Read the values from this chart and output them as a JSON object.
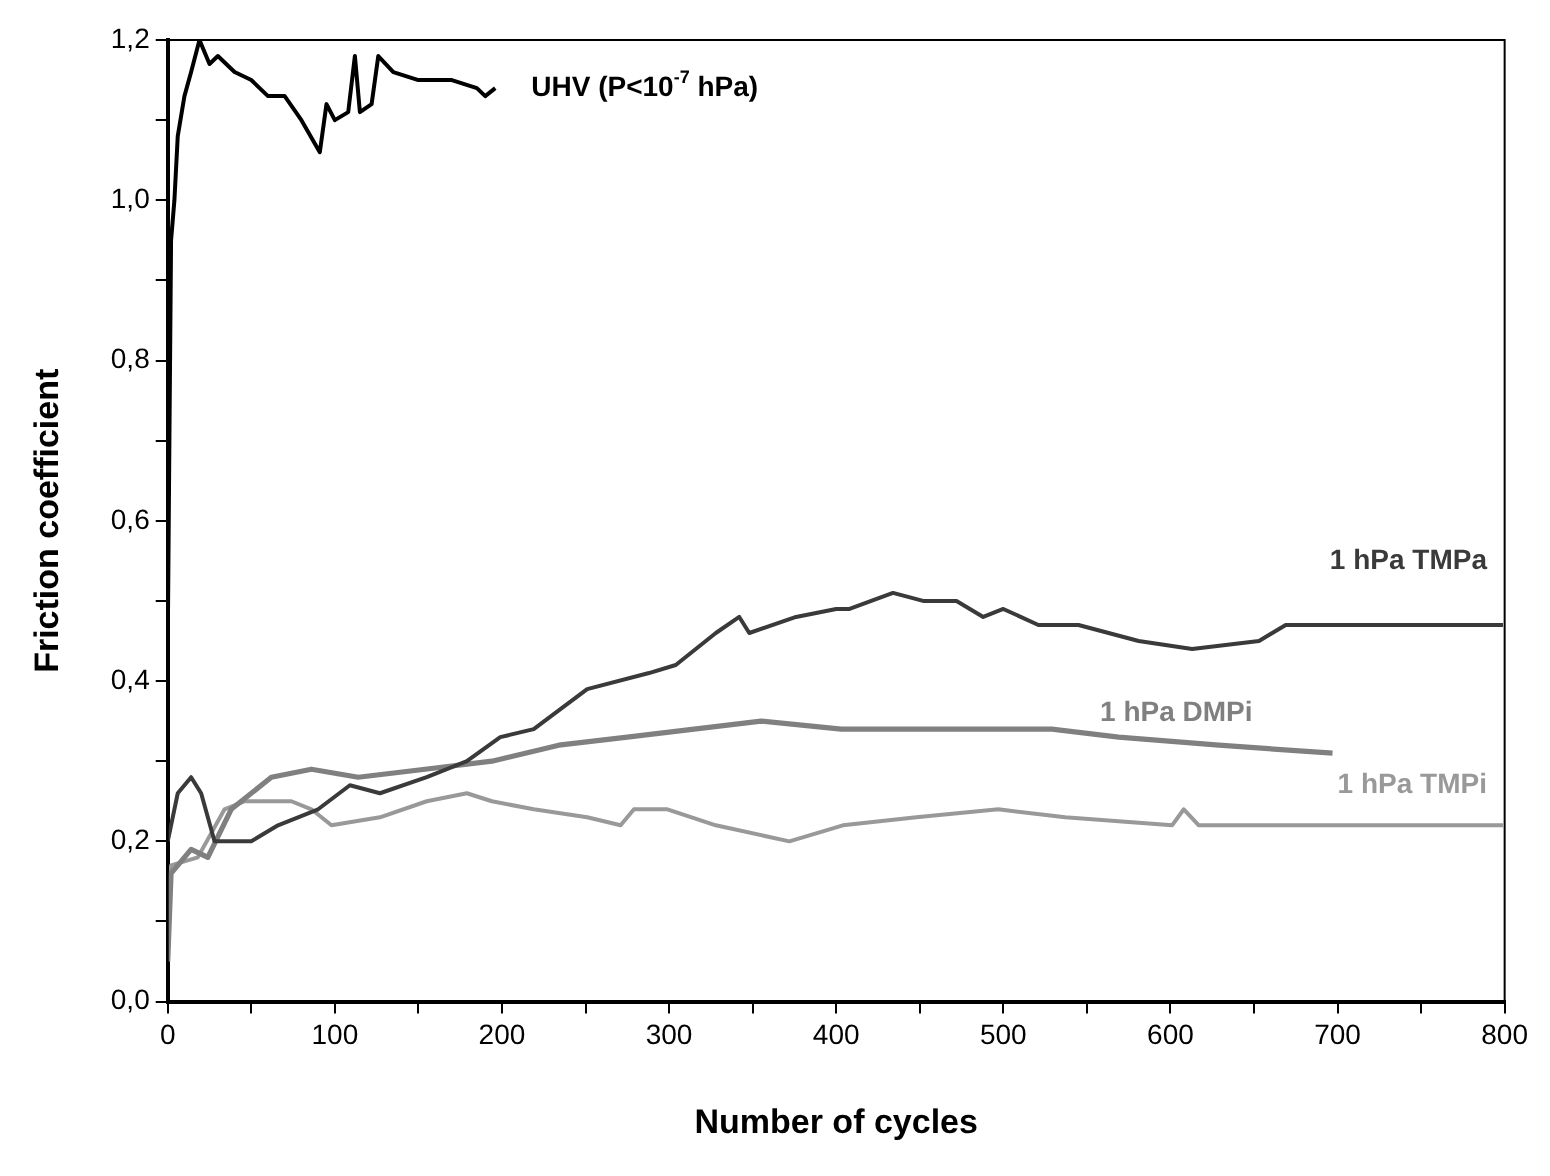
{
  "chart_data": {
    "type": "line",
    "xlabel": "Number of cycles",
    "ylabel": "Friction coefficient",
    "xlim": [
      0,
      800
    ],
    "ylim": [
      0,
      1.2
    ],
    "xticks": [
      0,
      {
        "value": 50,
        "label": null
      },
      100,
      {
        "value": 150,
        "label": null
      },
      200,
      {
        "value": 250,
        "label": null
      },
      300,
      {
        "value": 350,
        "label": null
      },
      400,
      {
        "value": 450,
        "label": null
      },
      500,
      {
        "value": 550,
        "label": null
      },
      600,
      {
        "value": 650,
        "label": null
      },
      700,
      {
        "value": 750,
        "label": null
      },
      800
    ],
    "yticks": [
      {
        "value": 0,
        "label": "0,0"
      },
      {
        "value": 0.1,
        "label": null
      },
      {
        "value": 0.2,
        "label": "0,2"
      },
      {
        "value": 0.3,
        "label": null
      },
      {
        "value": 0.4,
        "label": "0,4"
      },
      {
        "value": 0.5,
        "label": null
      },
      {
        "value": 0.6,
        "label": "0,6"
      },
      {
        "value": 0.7,
        "label": null
      },
      {
        "value": 0.8,
        "label": "0,8"
      },
      {
        "value": 0.9,
        "label": null
      },
      {
        "value": 1.0,
        "label": "1,0"
      },
      {
        "value": 1.1,
        "label": null
      },
      {
        "value": 1.2,
        "label": "1,2"
      }
    ],
    "grid": false,
    "legend": false,
    "marker": "none",
    "line_style": "solid",
    "series": [
      {
        "name": "UHV (P<10$^{-7}$ hPa)",
        "color": "#000000",
        "x": [
          0,
          1,
          2,
          4,
          6,
          10,
          14,
          19,
          25,
          30,
          40,
          50,
          60,
          70,
          80,
          91,
          95,
          100,
          108,
          112,
          115,
          122,
          126,
          135,
          150,
          170,
          185,
          190,
          196
        ],
        "values": [
          0.44,
          0.7,
          0.95,
          1.0,
          1.08,
          1.13,
          1.16,
          1.2,
          1.17,
          1.18,
          1.16,
          1.15,
          1.13,
          1.13,
          1.1,
          1.06,
          1.12,
          1.1,
          1.11,
          1.18,
          1.11,
          1.12,
          1.18,
          1.16,
          1.15,
          1.15,
          1.14,
          1.13,
          1.14
        ]
      },
      {
        "name": "1 hPa TMPa",
        "color": "#3a3a3a",
        "x": [
          0,
          2,
          6,
          14,
          20,
          28,
          50,
          66,
          90,
          109,
          127,
          155,
          179,
          199,
          219,
          251,
          288,
          304,
          328,
          342,
          348,
          376,
          400,
          408,
          434,
          452,
          472,
          488,
          500,
          521,
          545,
          581,
          613,
          653,
          669,
          709,
          749,
          799
        ],
        "values": [
          0.2,
          0.22,
          0.26,
          0.28,
          0.26,
          0.2,
          0.2,
          0.22,
          0.24,
          0.27,
          0.26,
          0.28,
          0.3,
          0.33,
          0.34,
          0.39,
          0.41,
          0.42,
          0.46,
          0.48,
          0.46,
          0.48,
          0.49,
          0.49,
          0.51,
          0.5,
          0.5,
          0.48,
          0.49,
          0.47,
          0.47,
          0.45,
          0.44,
          0.45,
          0.47,
          0.47,
          0.47,
          0.47
        ]
      },
      {
        "name": "1 hPa DMPi",
        "color": "#808080",
        "x": [
          0,
          2,
          14,
          24,
          38,
          62,
          86,
          114,
          154,
          194,
          234,
          275,
          315,
          355,
          403,
          448,
          529,
          569,
          629,
          697
        ],
        "values": [
          0.05,
          0.16,
          0.19,
          0.18,
          0.24,
          0.28,
          0.29,
          0.28,
          0.29,
          0.3,
          0.32,
          0.33,
          0.34,
          0.35,
          0.34,
          0.34,
          0.34,
          0.33,
          0.32,
          0.31
        ]
      },
      {
        "name": "1 hPa TMPi",
        "color": "#999999",
        "x": [
          0,
          2,
          18,
          34,
          46,
          74,
          86,
          98,
          127,
          155,
          179,
          194,
          219,
          251,
          271,
          279,
          299,
          328,
          372,
          404,
          448,
          497,
          537,
          601,
          608,
          617,
          709,
          799
        ],
        "values": [
          0.1,
          0.17,
          0.18,
          0.24,
          0.25,
          0.25,
          0.24,
          0.22,
          0.23,
          0.25,
          0.26,
          0.25,
          0.24,
          0.23,
          0.22,
          0.24,
          0.24,
          0.22,
          0.2,
          0.22,
          0.23,
          0.24,
          0.23,
          0.22,
          0.24,
          0.22,
          0.22,
          0.22
        ]
      }
    ]
  }
}
